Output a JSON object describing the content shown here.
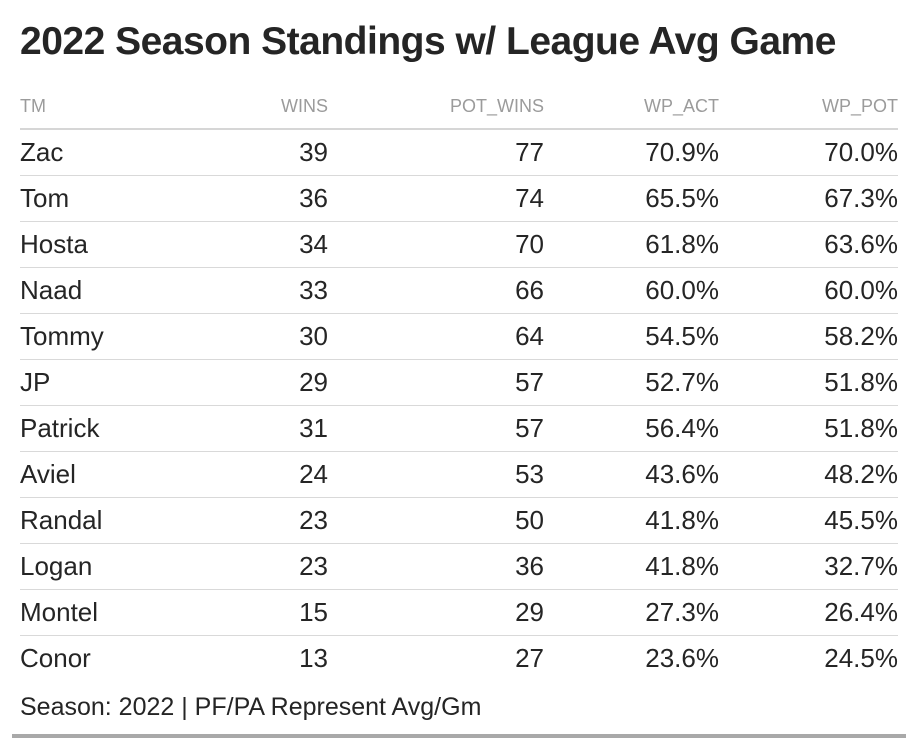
{
  "chart_data": {
    "type": "table",
    "title": "2022 Season Standings w/ League Avg Game",
    "columns": [
      "TM",
      "WINS",
      "POT_WINS",
      "WP_ACT",
      "WP_POT"
    ],
    "rows": [
      [
        "Zac",
        "39",
        "77",
        "70.9%",
        "70.0%"
      ],
      [
        "Tom",
        "36",
        "74",
        "65.5%",
        "67.3%"
      ],
      [
        "Hosta",
        "34",
        "70",
        "61.8%",
        "63.6%"
      ],
      [
        "Naad",
        "33",
        "66",
        "60.0%",
        "60.0%"
      ],
      [
        "Tommy",
        "30",
        "64",
        "54.5%",
        "58.2%"
      ],
      [
        "JP",
        "29",
        "57",
        "52.7%",
        "51.8%"
      ],
      [
        "Patrick",
        "31",
        "57",
        "56.4%",
        "51.8%"
      ],
      [
        "Aviel",
        "24",
        "53",
        "43.6%",
        "48.2%"
      ],
      [
        "Randal",
        "23",
        "50",
        "41.8%",
        "45.5%"
      ],
      [
        "Logan",
        "23",
        "36",
        "41.8%",
        "32.7%"
      ],
      [
        "Montel",
        "15",
        "29",
        "27.3%",
        "26.4%"
      ],
      [
        "Conor",
        "13",
        "27",
        "23.6%",
        "24.5%"
      ]
    ],
    "footnote": "Season: 2022 | PF/PA Represent Avg/Gm"
  }
}
